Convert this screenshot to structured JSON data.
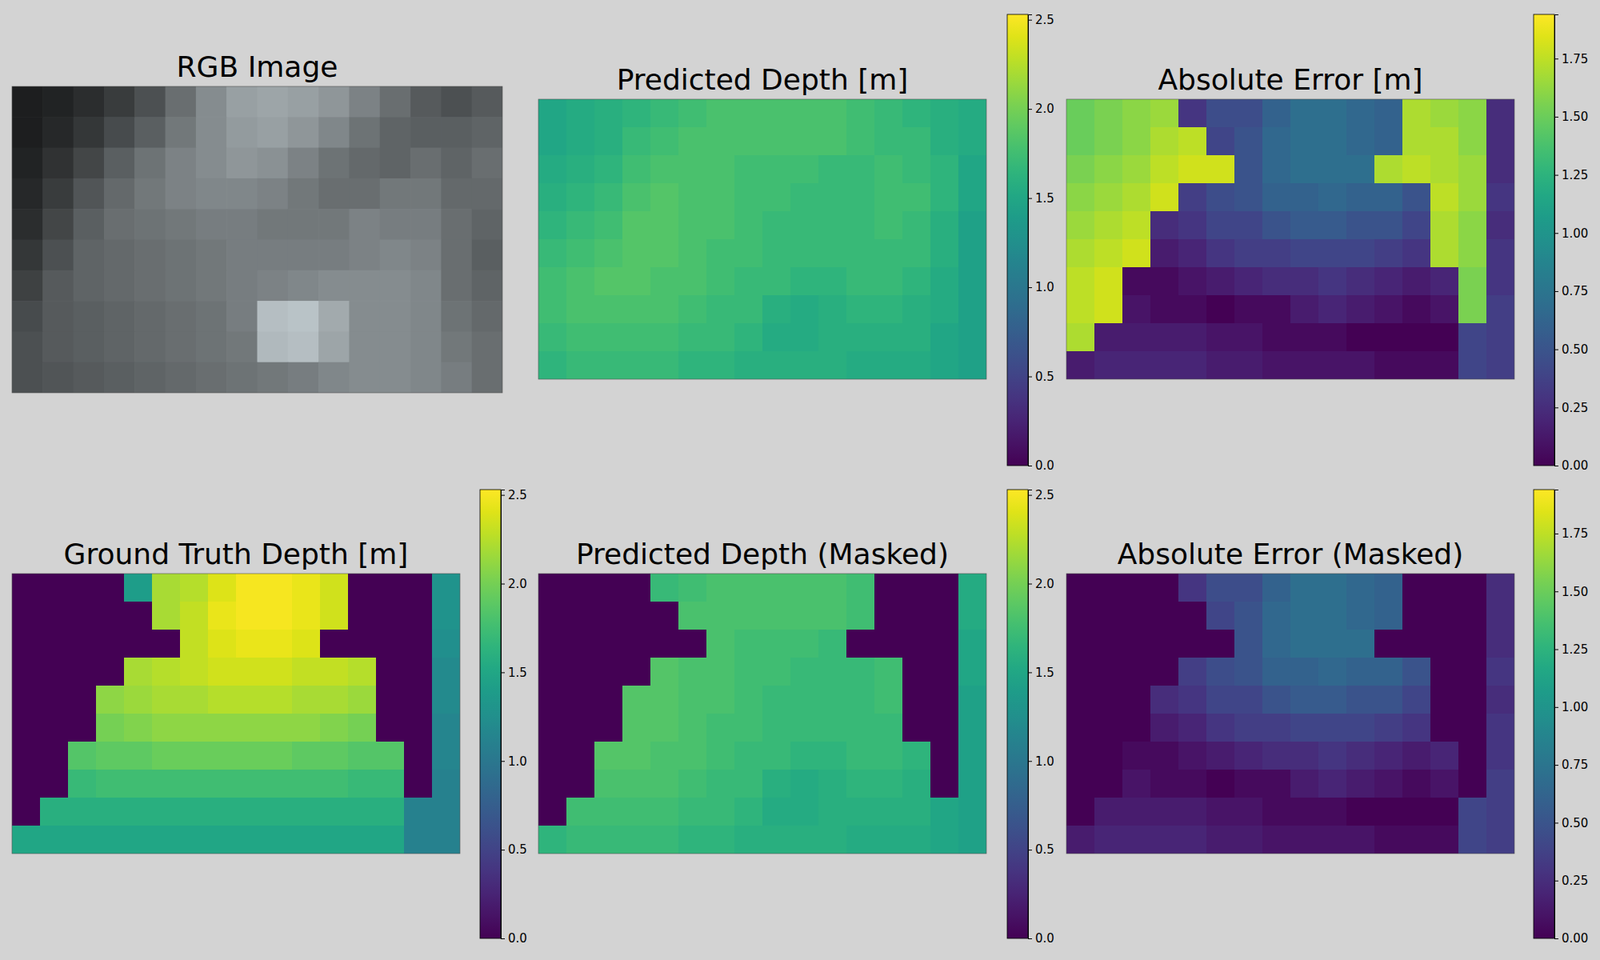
{
  "chart_data": [
    {
      "type": "image",
      "title": "RGB Image",
      "cells": [
        [
          30,
          35,
          45,
          60,
          80,
          110,
          140,
          160,
          165,
          160,
          150,
          130,
          110,
          90,
          80,
          90
        ],
        [
          30,
          40,
          55,
          75,
          95,
          120,
          140,
          155,
          160,
          150,
          135,
          115,
          100,
          95,
          95,
          100
        ],
        [
          35,
          50,
          70,
          95,
          115,
          130,
          140,
          150,
          145,
          130,
          115,
          105,
          100,
          110,
          100,
          110
        ],
        [
          40,
          60,
          85,
          105,
          120,
          130,
          135,
          135,
          130,
          120,
          110,
          110,
          120,
          120,
          105,
          105
        ],
        [
          45,
          70,
          95,
          110,
          115,
          120,
          125,
          125,
          120,
          120,
          120,
          130,
          125,
          125,
          110,
          100
        ],
        [
          55,
          80,
          100,
          105,
          110,
          115,
          120,
          125,
          125,
          125,
          125,
          130,
          135,
          130,
          110,
          95
        ],
        [
          65,
          90,
          100,
          105,
          110,
          115,
          120,
          125,
          130,
          135,
          140,
          140,
          140,
          135,
          110,
          100
        ],
        [
          75,
          90,
          95,
          100,
          105,
          110,
          115,
          125,
          190,
          195,
          170,
          140,
          140,
          135,
          115,
          105
        ],
        [
          80,
          90,
          95,
          100,
          105,
          110,
          115,
          120,
          185,
          190,
          165,
          140,
          140,
          135,
          120,
          110
        ],
        [
          80,
          85,
          90,
          95,
          100,
          105,
          110,
          115,
          120,
          125,
          135,
          140,
          140,
          135,
          125,
          110
        ]
      ]
    },
    {
      "type": "heatmap",
      "title": "Predicted Depth [m]",
      "colorbar_range": [
        0,
        2.53
      ],
      "colorbar_ticks": [
        {
          "value": 0,
          "label": "0.0"
        },
        {
          "value": 0.5,
          "label": "0.5"
        },
        {
          "value": 1,
          "label": "1.0"
        },
        {
          "value": 1.5,
          "label": "1.5"
        },
        {
          "value": 2,
          "label": "2.0"
        },
        {
          "value": 2.5,
          "label": "2.5"
        }
      ],
      "cells": [
        [
          1.5,
          1.55,
          1.6,
          1.65,
          1.7,
          1.75,
          1.8,
          1.8,
          1.8,
          1.8,
          1.8,
          1.75,
          1.7,
          1.65,
          1.6,
          1.55
        ],
        [
          1.5,
          1.55,
          1.6,
          1.7,
          1.75,
          1.8,
          1.8,
          1.8,
          1.8,
          1.8,
          1.8,
          1.75,
          1.7,
          1.7,
          1.6,
          1.55
        ],
        [
          1.55,
          1.6,
          1.65,
          1.75,
          1.8,
          1.8,
          1.8,
          1.75,
          1.75,
          1.75,
          1.7,
          1.7,
          1.75,
          1.7,
          1.65,
          1.5
        ],
        [
          1.6,
          1.65,
          1.7,
          1.8,
          1.85,
          1.8,
          1.8,
          1.75,
          1.75,
          1.7,
          1.7,
          1.7,
          1.75,
          1.75,
          1.65,
          1.5
        ],
        [
          1.65,
          1.7,
          1.75,
          1.85,
          1.85,
          1.8,
          1.8,
          1.75,
          1.7,
          1.7,
          1.7,
          1.7,
          1.75,
          1.7,
          1.6,
          1.45
        ],
        [
          1.7,
          1.75,
          1.8,
          1.85,
          1.85,
          1.8,
          1.75,
          1.75,
          1.7,
          1.7,
          1.7,
          1.7,
          1.7,
          1.7,
          1.6,
          1.45
        ],
        [
          1.75,
          1.8,
          1.85,
          1.85,
          1.8,
          1.8,
          1.75,
          1.7,
          1.7,
          1.65,
          1.65,
          1.7,
          1.7,
          1.65,
          1.55,
          1.45
        ],
        [
          1.75,
          1.8,
          1.8,
          1.8,
          1.8,
          1.75,
          1.7,
          1.7,
          1.6,
          1.55,
          1.6,
          1.65,
          1.65,
          1.6,
          1.55,
          1.45
        ],
        [
          1.7,
          1.75,
          1.75,
          1.75,
          1.75,
          1.7,
          1.7,
          1.65,
          1.55,
          1.55,
          1.6,
          1.6,
          1.6,
          1.6,
          1.5,
          1.45
        ],
        [
          1.65,
          1.7,
          1.7,
          1.7,
          1.7,
          1.65,
          1.65,
          1.6,
          1.6,
          1.6,
          1.6,
          1.55,
          1.55,
          1.55,
          1.5,
          1.45
        ]
      ]
    },
    {
      "type": "heatmap",
      "title": "Absolute Error [m]",
      "colorbar_range": [
        0,
        1.94
      ],
      "colorbar_ticks": [
        {
          "value": 0,
          "label": "0.00"
        },
        {
          "value": 0.25,
          "label": "0.25"
        },
        {
          "value": 0.5,
          "label": "0.50"
        },
        {
          "value": 0.75,
          "label": "0.75"
        },
        {
          "value": 1,
          "label": "1.00"
        },
        {
          "value": 1.25,
          "label": "1.25"
        },
        {
          "value": 1.5,
          "label": "1.50"
        },
        {
          "value": 1.75,
          "label": "1.75"
        }
      ],
      "cells": [
        [
          1.5,
          1.55,
          1.6,
          1.65,
          0.3,
          0.45,
          0.45,
          0.6,
          0.7,
          0.7,
          0.65,
          0.6,
          1.7,
          1.65,
          1.6,
          0.25
        ],
        [
          1.5,
          1.55,
          1.6,
          1.7,
          1.75,
          0.4,
          0.5,
          0.65,
          0.7,
          0.7,
          0.65,
          0.6,
          1.7,
          1.7,
          1.6,
          0.25
        ],
        [
          1.55,
          1.6,
          1.65,
          1.75,
          1.8,
          1.8,
          0.5,
          0.65,
          0.7,
          0.7,
          0.7,
          1.7,
          1.75,
          1.7,
          1.65,
          0.25
        ],
        [
          1.6,
          1.65,
          1.7,
          1.8,
          0.35,
          0.45,
          0.5,
          0.6,
          0.6,
          0.65,
          0.6,
          0.6,
          0.5,
          1.75,
          1.65,
          0.3
        ],
        [
          1.65,
          1.7,
          1.75,
          0.25,
          0.3,
          0.4,
          0.4,
          0.5,
          0.55,
          0.55,
          0.5,
          0.5,
          0.4,
          1.7,
          1.6,
          0.25
        ],
        [
          1.7,
          1.75,
          1.8,
          0.15,
          0.2,
          0.3,
          0.35,
          0.35,
          0.4,
          0.4,
          0.4,
          0.35,
          0.3,
          1.7,
          1.6,
          0.3
        ],
        [
          1.75,
          1.8,
          0.05,
          0.05,
          0.1,
          0.15,
          0.2,
          0.25,
          0.25,
          0.3,
          0.25,
          0.2,
          0.15,
          0.2,
          1.55,
          0.3
        ],
        [
          1.75,
          1.8,
          0.1,
          0.05,
          0.05,
          0.0,
          0.05,
          0.05,
          0.15,
          0.2,
          0.15,
          0.1,
          0.05,
          0.1,
          1.55,
          0.35
        ],
        [
          1.7,
          0.15,
          0.15,
          0.15,
          0.15,
          0.1,
          0.1,
          0.05,
          0.05,
          0.05,
          0.0,
          0.0,
          0.0,
          0.0,
          0.4,
          0.35
        ],
        [
          0.15,
          0.2,
          0.2,
          0.2,
          0.2,
          0.15,
          0.15,
          0.1,
          0.1,
          0.1,
          0.1,
          0.05,
          0.05,
          0.05,
          0.4,
          0.35
        ]
      ]
    },
    {
      "type": "heatmap",
      "title": "Ground Truth Depth [m]",
      "colorbar_range": [
        0,
        2.53
      ],
      "colorbar_ticks": [
        {
          "value": 0,
          "label": "0.0"
        },
        {
          "value": 0.5,
          "label": "0.5"
        },
        {
          "value": 1,
          "label": "1.0"
        },
        {
          "value": 1.5,
          "label": "1.5"
        },
        {
          "value": 2,
          "label": "2.0"
        },
        {
          "value": 2.5,
          "label": "2.5"
        }
      ],
      "cells": [
        [
          0,
          0,
          0,
          0,
          1.4,
          2.2,
          2.25,
          2.4,
          2.5,
          2.5,
          2.45,
          2.35,
          0,
          0,
          0,
          1.3
        ],
        [
          0,
          0,
          0,
          0,
          0,
          2.2,
          2.3,
          2.45,
          2.5,
          2.5,
          2.45,
          2.35,
          0,
          0,
          0,
          1.3
        ],
        [
          0,
          0,
          0,
          0,
          0,
          0,
          2.3,
          2.4,
          2.45,
          2.45,
          2.4,
          0,
          0,
          0,
          0,
          1.25
        ],
        [
          0,
          0,
          0,
          0,
          2.2,
          2.25,
          2.3,
          2.35,
          2.35,
          2.35,
          2.3,
          2.3,
          2.25,
          0,
          0,
          1.2
        ],
        [
          0,
          0,
          0,
          2.1,
          2.15,
          2.2,
          2.2,
          2.25,
          2.25,
          2.25,
          2.2,
          2.2,
          2.15,
          0,
          0,
          1.2
        ],
        [
          0,
          0,
          0,
          2.0,
          2.05,
          2.1,
          2.1,
          2.1,
          2.1,
          2.1,
          2.1,
          2.05,
          2.0,
          0,
          0,
          1.15
        ],
        [
          0,
          0,
          1.85,
          1.9,
          1.9,
          1.95,
          1.95,
          1.95,
          1.95,
          1.95,
          1.9,
          1.9,
          1.85,
          1.85,
          0,
          1.15
        ],
        [
          0,
          0,
          1.7,
          1.75,
          1.75,
          1.75,
          1.75,
          1.75,
          1.75,
          1.75,
          1.75,
          1.75,
          1.7,
          1.7,
          0,
          1.1
        ],
        [
          0,
          1.6,
          1.6,
          1.6,
          1.6,
          1.6,
          1.6,
          1.6,
          1.6,
          1.6,
          1.6,
          1.6,
          1.6,
          1.6,
          1.1,
          1.1
        ],
        [
          1.5,
          1.5,
          1.5,
          1.5,
          1.5,
          1.5,
          1.5,
          1.5,
          1.5,
          1.5,
          1.5,
          1.5,
          1.5,
          1.5,
          1.1,
          1.1
        ]
      ]
    },
    {
      "type": "heatmap",
      "title": "Predicted Depth (Masked)",
      "colorbar_range": [
        0,
        2.53
      ],
      "colorbar_ticks": [
        {
          "value": 0,
          "label": "0.0"
        },
        {
          "value": 0.5,
          "label": "0.5"
        },
        {
          "value": 1,
          "label": "1.0"
        },
        {
          "value": 1.5,
          "label": "1.5"
        },
        {
          "value": 2,
          "label": "2.0"
        },
        {
          "value": 2.5,
          "label": "2.5"
        }
      ],
      "cells": [
        [
          0,
          0,
          0,
          0,
          1.7,
          1.75,
          1.8,
          1.8,
          1.8,
          1.8,
          1.8,
          1.75,
          0,
          0,
          0,
          1.55
        ],
        [
          0,
          0,
          0,
          0,
          0,
          1.8,
          1.8,
          1.8,
          1.8,
          1.8,
          1.8,
          1.75,
          0,
          0,
          0,
          1.55
        ],
        [
          0,
          0,
          0,
          0,
          0,
          0,
          1.8,
          1.75,
          1.75,
          1.75,
          1.7,
          0,
          0,
          0,
          0,
          1.5
        ],
        [
          0,
          0,
          0,
          0,
          1.85,
          1.8,
          1.8,
          1.75,
          1.75,
          1.7,
          1.7,
          1.7,
          1.75,
          0,
          0,
          1.5
        ],
        [
          0,
          0,
          0,
          1.85,
          1.85,
          1.8,
          1.8,
          1.75,
          1.7,
          1.7,
          1.7,
          1.7,
          1.75,
          0,
          0,
          1.45
        ],
        [
          0,
          0,
          0,
          1.85,
          1.85,
          1.8,
          1.75,
          1.75,
          1.7,
          1.7,
          1.7,
          1.7,
          1.7,
          0,
          0,
          1.45
        ],
        [
          0,
          0,
          1.85,
          1.85,
          1.8,
          1.8,
          1.75,
          1.7,
          1.7,
          1.65,
          1.65,
          1.7,
          1.7,
          1.65,
          0,
          1.45
        ],
        [
          0,
          0,
          1.8,
          1.8,
          1.8,
          1.75,
          1.7,
          1.7,
          1.6,
          1.55,
          1.6,
          1.65,
          1.65,
          1.6,
          0,
          1.45
        ],
        [
          0,
          1.75,
          1.75,
          1.75,
          1.75,
          1.7,
          1.7,
          1.65,
          1.55,
          1.55,
          1.6,
          1.6,
          1.6,
          1.6,
          1.5,
          1.45
        ],
        [
          1.65,
          1.7,
          1.7,
          1.7,
          1.7,
          1.65,
          1.65,
          1.6,
          1.6,
          1.6,
          1.6,
          1.55,
          1.55,
          1.55,
          1.5,
          1.45
        ]
      ]
    },
    {
      "type": "heatmap",
      "title": "Absolute Error (Masked)",
      "colorbar_range": [
        0,
        1.94
      ],
      "colorbar_ticks": [
        {
          "value": 0,
          "label": "0.00"
        },
        {
          "value": 0.25,
          "label": "0.25"
        },
        {
          "value": 0.5,
          "label": "0.50"
        },
        {
          "value": 0.75,
          "label": "0.75"
        },
        {
          "value": 1,
          "label": "1.00"
        },
        {
          "value": 1.25,
          "label": "1.25"
        },
        {
          "value": 1.5,
          "label": "1.50"
        },
        {
          "value": 1.75,
          "label": "1.75"
        }
      ],
      "cells": [
        [
          0,
          0,
          0,
          0,
          0.3,
          0.45,
          0.45,
          0.6,
          0.7,
          0.7,
          0.65,
          0.6,
          0,
          0,
          0,
          0.25
        ],
        [
          0,
          0,
          0,
          0,
          0,
          0.4,
          0.5,
          0.65,
          0.7,
          0.7,
          0.65,
          0.6,
          0,
          0,
          0,
          0.25
        ],
        [
          0,
          0,
          0,
          0,
          0,
          0,
          0.5,
          0.65,
          0.7,
          0.7,
          0.7,
          0,
          0,
          0,
          0,
          0.25
        ],
        [
          0,
          0,
          0,
          0,
          0.35,
          0.45,
          0.5,
          0.6,
          0.6,
          0.65,
          0.6,
          0.6,
          0.5,
          0,
          0,
          0.3
        ],
        [
          0,
          0,
          0,
          0.25,
          0.3,
          0.4,
          0.4,
          0.5,
          0.55,
          0.55,
          0.5,
          0.5,
          0.4,
          0,
          0,
          0.25
        ],
        [
          0,
          0,
          0,
          0.15,
          0.2,
          0.3,
          0.35,
          0.35,
          0.4,
          0.4,
          0.4,
          0.35,
          0.3,
          0,
          0,
          0.3
        ],
        [
          0,
          0,
          0.05,
          0.05,
          0.1,
          0.15,
          0.2,
          0.25,
          0.25,
          0.3,
          0.25,
          0.2,
          0.15,
          0.2,
          0,
          0.3
        ],
        [
          0,
          0,
          0.1,
          0.05,
          0.05,
          0.0,
          0.05,
          0.05,
          0.15,
          0.2,
          0.15,
          0.1,
          0.05,
          0.1,
          0,
          0.35
        ],
        [
          0,
          0.15,
          0.15,
          0.15,
          0.15,
          0.1,
          0.1,
          0.05,
          0.05,
          0.05,
          0,
          0,
          0,
          0,
          0.4,
          0.35
        ],
        [
          0.15,
          0.2,
          0.2,
          0.2,
          0.2,
          0.15,
          0.15,
          0.1,
          0.1,
          0.1,
          0.1,
          0.05,
          0.05,
          0.05,
          0.4,
          0.35
        ]
      ]
    }
  ]
}
